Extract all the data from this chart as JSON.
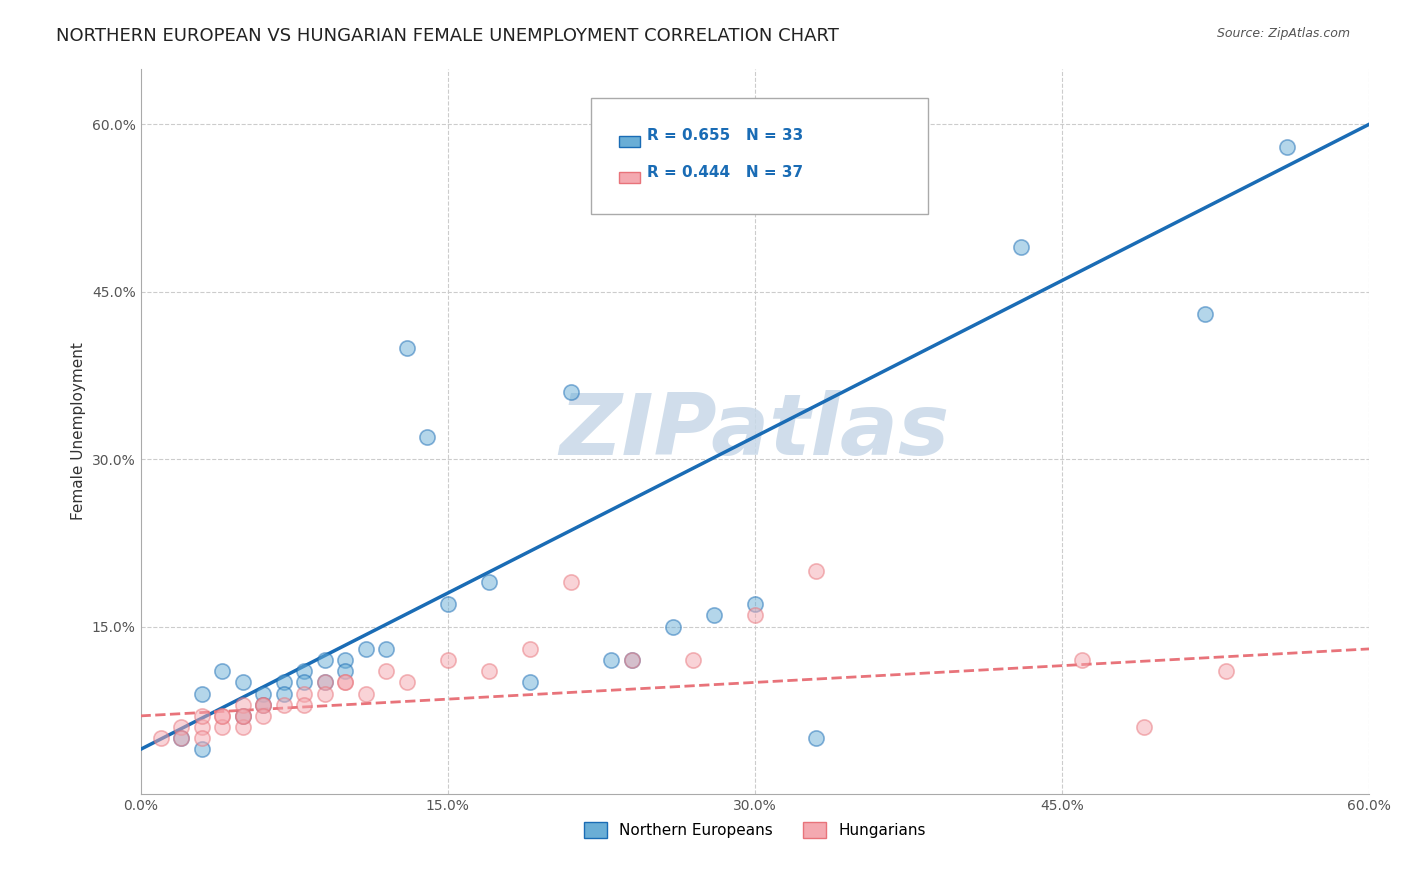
{
  "title": "NORTHERN EUROPEAN VS HUNGARIAN FEMALE UNEMPLOYMENT CORRELATION CHART",
  "source": "Source: ZipAtlas.com",
  "xlabel": "",
  "ylabel": "Female Unemployment",
  "xlim": [
    0.0,
    0.6
  ],
  "ylim": [
    0.0,
    0.65
  ],
  "xticks": [
    0.0,
    0.15,
    0.3,
    0.45,
    0.6
  ],
  "xtick_labels": [
    "0.0%",
    "15.0%",
    "30.0%",
    "45.0%",
    "60.0%"
  ],
  "yticks": [
    0.0,
    0.15,
    0.3,
    0.45,
    0.6
  ],
  "ytick_labels": [
    "",
    "15.0%",
    "30.0%",
    "45.0%",
    "60.0%"
  ],
  "blue_R": 0.655,
  "blue_N": 33,
  "pink_R": 0.444,
  "pink_N": 37,
  "blue_color": "#6aaed6",
  "pink_color": "#f4a9b0",
  "blue_line_color": "#1a6cb5",
  "pink_line_color": "#e8737a",
  "watermark": "ZIPatlas",
  "watermark_color": "#c8d8e8",
  "legend_label_blue": "Northern Europeans",
  "legend_label_pink": "Hungarians",
  "blue_scatter_x": [
    0.02,
    0.03,
    0.03,
    0.04,
    0.05,
    0.05,
    0.06,
    0.06,
    0.07,
    0.07,
    0.08,
    0.08,
    0.09,
    0.09,
    0.1,
    0.1,
    0.11,
    0.12,
    0.13,
    0.14,
    0.15,
    0.17,
    0.19,
    0.21,
    0.23,
    0.24,
    0.26,
    0.28,
    0.3,
    0.33,
    0.43,
    0.52,
    0.56
  ],
  "blue_scatter_y": [
    0.05,
    0.09,
    0.04,
    0.11,
    0.1,
    0.07,
    0.09,
    0.08,
    0.1,
    0.09,
    0.11,
    0.1,
    0.12,
    0.1,
    0.12,
    0.11,
    0.13,
    0.13,
    0.4,
    0.32,
    0.17,
    0.19,
    0.1,
    0.36,
    0.12,
    0.12,
    0.15,
    0.16,
    0.17,
    0.05,
    0.49,
    0.43,
    0.58
  ],
  "pink_scatter_x": [
    0.01,
    0.02,
    0.02,
    0.03,
    0.03,
    0.03,
    0.04,
    0.04,
    0.04,
    0.05,
    0.05,
    0.05,
    0.05,
    0.06,
    0.06,
    0.06,
    0.07,
    0.08,
    0.08,
    0.09,
    0.09,
    0.1,
    0.1,
    0.11,
    0.12,
    0.13,
    0.15,
    0.17,
    0.19,
    0.21,
    0.24,
    0.27,
    0.3,
    0.33,
    0.46,
    0.49,
    0.53
  ],
  "pink_scatter_y": [
    0.05,
    0.06,
    0.05,
    0.06,
    0.07,
    0.05,
    0.07,
    0.06,
    0.07,
    0.07,
    0.06,
    0.08,
    0.07,
    0.08,
    0.08,
    0.07,
    0.08,
    0.09,
    0.08,
    0.1,
    0.09,
    0.1,
    0.1,
    0.09,
    0.11,
    0.1,
    0.12,
    0.11,
    0.13,
    0.19,
    0.12,
    0.12,
    0.16,
    0.2,
    0.12,
    0.06,
    0.11
  ],
  "blue_line_x": [
    0.0,
    0.6
  ],
  "blue_line_y": [
    0.04,
    0.6
  ],
  "pink_line_x": [
    0.0,
    0.6
  ],
  "pink_line_y": [
    0.07,
    0.13
  ],
  "grid_color": "#cccccc",
  "background_color": "#ffffff",
  "title_fontsize": 13,
  "axis_fontsize": 11,
  "tick_fontsize": 10,
  "scatter_size": 120,
  "scatter_alpha": 0.5,
  "scatter_linewidth": 1.2
}
